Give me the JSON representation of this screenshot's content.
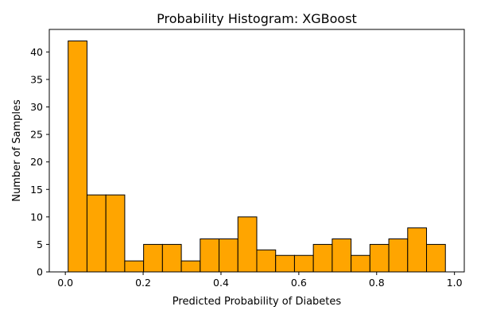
{
  "chart_data": {
    "type": "bar",
    "title": "Probability Histogram: XGBoost",
    "xlabel": "Predicted Probability of Diabetes",
    "ylabel": "Number of Samples",
    "bar_color": "#FFA500",
    "edge_color": "#000000",
    "bins": [
      {
        "start": 0.00727,
        "end": 0.05574,
        "count": 42
      },
      {
        "start": 0.05574,
        "end": 0.10421,
        "count": 14
      },
      {
        "start": 0.10421,
        "end": 0.15268,
        "count": 14
      },
      {
        "start": 0.15268,
        "end": 0.20115,
        "count": 2
      },
      {
        "start": 0.20115,
        "end": 0.24962,
        "count": 5
      },
      {
        "start": 0.24962,
        "end": 0.29809,
        "count": 5
      },
      {
        "start": 0.29809,
        "end": 0.34656,
        "count": 2
      },
      {
        "start": 0.34656,
        "end": 0.39503,
        "count": 6
      },
      {
        "start": 0.39503,
        "end": 0.4435,
        "count": 6
      },
      {
        "start": 0.4435,
        "end": 0.49197,
        "count": 10
      },
      {
        "start": 0.49197,
        "end": 0.54044,
        "count": 4
      },
      {
        "start": 0.54044,
        "end": 0.58891,
        "count": 3
      },
      {
        "start": 0.58891,
        "end": 0.63738,
        "count": 3
      },
      {
        "start": 0.63738,
        "end": 0.68585,
        "count": 5
      },
      {
        "start": 0.68585,
        "end": 0.73432,
        "count": 6
      },
      {
        "start": 0.73432,
        "end": 0.78279,
        "count": 3
      },
      {
        "start": 0.78279,
        "end": 0.83126,
        "count": 5
      },
      {
        "start": 0.83126,
        "end": 0.87973,
        "count": 6
      },
      {
        "start": 0.87973,
        "end": 0.9282,
        "count": 8
      },
      {
        "start": 0.9282,
        "end": 0.97667,
        "count": 5
      }
    ],
    "xlim": [
      -0.0412,
      1.0252
    ],
    "ylim": [
      0,
      44.1
    ],
    "x_ticks": [
      0.0,
      0.2,
      0.4,
      0.6,
      0.8,
      1.0
    ],
    "x_tick_labels": [
      "0.0",
      "0.2",
      "0.4",
      "0.6",
      "0.8",
      "1.0"
    ],
    "y_ticks": [
      0,
      5,
      10,
      15,
      20,
      25,
      30,
      35,
      40
    ],
    "y_tick_labels": [
      "0",
      "5",
      "10",
      "15",
      "20",
      "25",
      "30",
      "35",
      "40"
    ],
    "grid": false,
    "legend": "none"
  }
}
